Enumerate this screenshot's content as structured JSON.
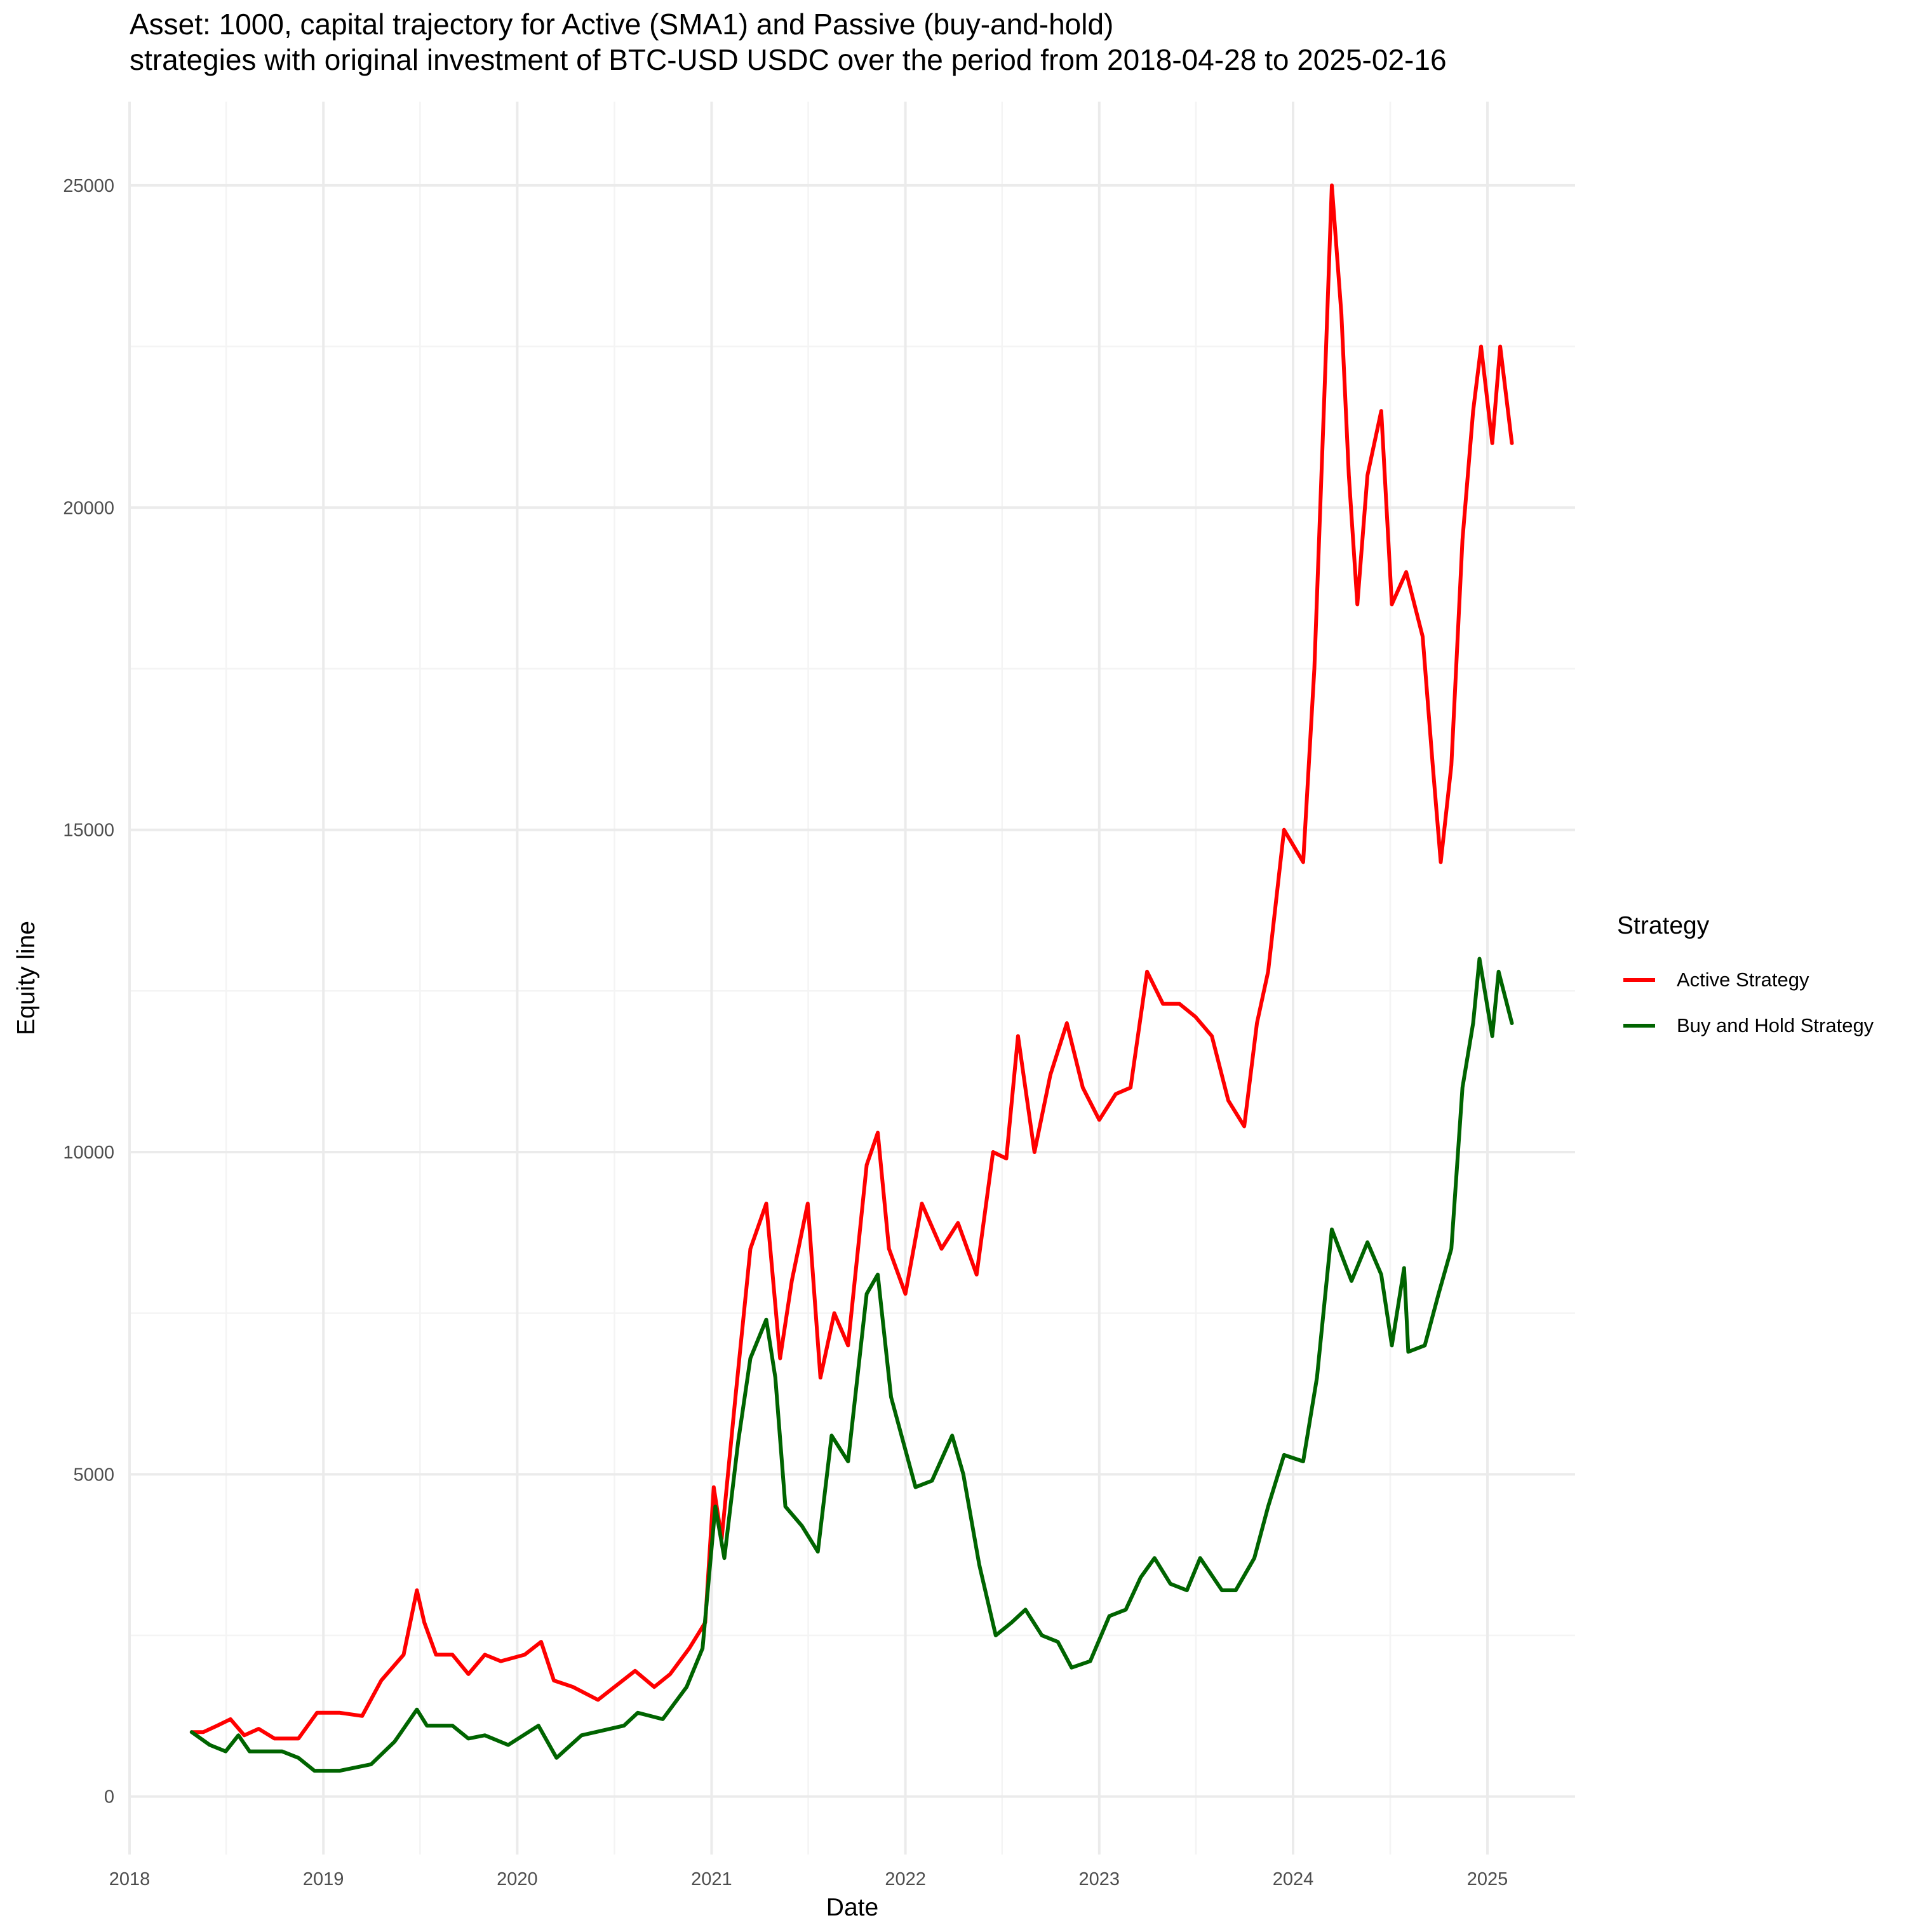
{
  "chart_data": {
    "type": "line",
    "title_line1": "Asset: 1000, capital trajectory for Active (SMA1) and Passive (buy-and-hold)",
    "title_line2": "strategies with original investment of BTC-USD USDC over the period from 2018-04-28 to 2025-02-16",
    "xlabel": "Date",
    "ylabel": "Equity line",
    "x_ticks": [
      "2018",
      "2019",
      "2020",
      "2021",
      "2022",
      "2023",
      "2024",
      "2025"
    ],
    "y_ticks": [
      "0",
      "5000",
      "10000",
      "15000",
      "20000",
      "25000"
    ],
    "xlim": [
      "2018-01-01",
      "2025-06-15"
    ],
    "ylim": [
      -900,
      26300
    ],
    "grid": true,
    "legend": {
      "title": "Strategy",
      "placement": "right",
      "entries": [
        "Active Strategy",
        "Buy and Hold Strategy"
      ]
    },
    "series": [
      {
        "name": "Active Strategy",
        "color": "#ff0000",
        "points": [
          [
            "2018-04-28",
            1000
          ],
          [
            "2018-05-20",
            1000
          ],
          [
            "2018-06-15",
            1100
          ],
          [
            "2018-07-10",
            1200
          ],
          [
            "2018-08-05",
            950
          ],
          [
            "2018-09-01",
            1050
          ],
          [
            "2018-10-01",
            900
          ],
          [
            "2018-11-15",
            900
          ],
          [
            "2018-12-20",
            1300
          ],
          [
            "2019-02-01",
            1300
          ],
          [
            "2019-03-15",
            1250
          ],
          [
            "2019-04-20",
            1800
          ],
          [
            "2019-06-01",
            2200
          ],
          [
            "2019-06-26",
            3200
          ],
          [
            "2019-07-10",
            2700
          ],
          [
            "2019-08-01",
            2200
          ],
          [
            "2019-09-01",
            2200
          ],
          [
            "2019-10-01",
            1900
          ],
          [
            "2019-11-01",
            2200
          ],
          [
            "2019-12-01",
            2100
          ],
          [
            "2020-01-15",
            2200
          ],
          [
            "2020-02-15",
            2400
          ],
          [
            "2020-03-10",
            1800
          ],
          [
            "2020-04-15",
            1700
          ],
          [
            "2020-06-01",
            1500
          ],
          [
            "2020-08-10",
            1950
          ],
          [
            "2020-09-15",
            1700
          ],
          [
            "2020-10-15",
            1900
          ],
          [
            "2020-11-20",
            2300
          ],
          [
            "2020-12-20",
            2700
          ],
          [
            "2021-01-05",
            4800
          ],
          [
            "2021-01-20",
            4000
          ],
          [
            "2021-02-15",
            6200
          ],
          [
            "2021-03-15",
            8500
          ],
          [
            "2021-04-14",
            9200
          ],
          [
            "2021-05-10",
            6800
          ],
          [
            "2021-06-01",
            8000
          ],
          [
            "2021-07-01",
            9200
          ],
          [
            "2021-07-25",
            6500
          ],
          [
            "2021-08-20",
            7500
          ],
          [
            "2021-09-15",
            7000
          ],
          [
            "2021-10-20",
            9800
          ],
          [
            "2021-11-10",
            10300
          ],
          [
            "2021-12-01",
            8500
          ],
          [
            "2022-01-01",
            7800
          ],
          [
            "2022-02-01",
            9200
          ],
          [
            "2022-03-10",
            8500
          ],
          [
            "2022-04-10",
            8900
          ],
          [
            "2022-05-15",
            8100
          ],
          [
            "2022-06-15",
            10000
          ],
          [
            "2022-07-10",
            9900
          ],
          [
            "2022-08-01",
            11800
          ],
          [
            "2022-09-01",
            10000
          ],
          [
            "2022-10-01",
            11200
          ],
          [
            "2022-11-01",
            12000
          ],
          [
            "2022-12-01",
            11000
          ],
          [
            "2023-01-01",
            10500
          ],
          [
            "2023-02-01",
            10900
          ],
          [
            "2023-03-01",
            11000
          ],
          [
            "2023-04-01",
            12800
          ],
          [
            "2023-05-01",
            12300
          ],
          [
            "2023-06-01",
            12300
          ],
          [
            "2023-07-01",
            12100
          ],
          [
            "2023-08-01",
            11800
          ],
          [
            "2023-09-01",
            10800
          ],
          [
            "2023-10-01",
            10400
          ],
          [
            "2023-10-25",
            12000
          ],
          [
            "2023-11-15",
            12800
          ],
          [
            "2023-12-15",
            15000
          ],
          [
            "2024-01-20",
            14500
          ],
          [
            "2024-02-10",
            17500
          ],
          [
            "2024-03-01",
            22000
          ],
          [
            "2024-03-14",
            25000
          ],
          [
            "2024-04-01",
            23000
          ],
          [
            "2024-04-15",
            20500
          ],
          [
            "2024-05-01",
            18500
          ],
          [
            "2024-05-20",
            20500
          ],
          [
            "2024-06-15",
            21500
          ],
          [
            "2024-07-05",
            18500
          ],
          [
            "2024-08-01",
            19000
          ],
          [
            "2024-09-01",
            18000
          ],
          [
            "2024-09-20",
            16000
          ],
          [
            "2024-10-05",
            14500
          ],
          [
            "2024-10-25",
            16000
          ],
          [
            "2024-11-15",
            19500
          ],
          [
            "2024-12-05",
            21500
          ],
          [
            "2024-12-20",
            22500
          ],
          [
            "2025-01-10",
            21000
          ],
          [
            "2025-01-25",
            22500
          ],
          [
            "2025-02-16",
            21000
          ]
        ]
      },
      {
        "name": "Buy and Hold Strategy",
        "color": "#006400",
        "points": [
          [
            "2018-04-28",
            1000
          ],
          [
            "2018-06-01",
            800
          ],
          [
            "2018-07-01",
            700
          ],
          [
            "2018-07-25",
            950
          ],
          [
            "2018-08-15",
            700
          ],
          [
            "2018-09-10",
            700
          ],
          [
            "2018-10-15",
            700
          ],
          [
            "2018-11-15",
            600
          ],
          [
            "2018-12-15",
            400
          ],
          [
            "2019-02-01",
            400
          ],
          [
            "2019-04-01",
            500
          ],
          [
            "2019-05-15",
            850
          ],
          [
            "2019-06-26",
            1350
          ],
          [
            "2019-07-15",
            1100
          ],
          [
            "2019-09-01",
            1100
          ],
          [
            "2019-10-01",
            900
          ],
          [
            "2019-11-01",
            950
          ],
          [
            "2019-12-15",
            800
          ],
          [
            "2020-02-10",
            1100
          ],
          [
            "2020-03-15",
            600
          ],
          [
            "2020-05-01",
            950
          ],
          [
            "2020-07-20",
            1100
          ],
          [
            "2020-08-15",
            1300
          ],
          [
            "2020-10-01",
            1200
          ],
          [
            "2020-11-15",
            1700
          ],
          [
            "2020-12-15",
            2300
          ],
          [
            "2021-01-08",
            4500
          ],
          [
            "2021-01-25",
            3700
          ],
          [
            "2021-02-20",
            5500
          ],
          [
            "2021-03-15",
            6800
          ],
          [
            "2021-04-14",
            7400
          ],
          [
            "2021-05-01",
            6500
          ],
          [
            "2021-05-20",
            4500
          ],
          [
            "2021-06-20",
            4200
          ],
          [
            "2021-07-20",
            3800
          ],
          [
            "2021-08-15",
            5600
          ],
          [
            "2021-09-15",
            5200
          ],
          [
            "2021-10-20",
            7800
          ],
          [
            "2021-11-10",
            8100
          ],
          [
            "2021-12-05",
            6200
          ],
          [
            "2022-01-20",
            4800
          ],
          [
            "2022-02-20",
            4900
          ],
          [
            "2022-03-30",
            5600
          ],
          [
            "2022-04-20",
            5000
          ],
          [
            "2022-05-20",
            3600
          ],
          [
            "2022-06-20",
            2500
          ],
          [
            "2022-07-20",
            2700
          ],
          [
            "2022-08-15",
            2900
          ],
          [
            "2022-09-15",
            2500
          ],
          [
            "2022-10-15",
            2400
          ],
          [
            "2022-11-10",
            2000
          ],
          [
            "2022-12-15",
            2100
          ],
          [
            "2023-01-20",
            2800
          ],
          [
            "2023-02-20",
            2900
          ],
          [
            "2023-03-20",
            3400
          ],
          [
            "2023-04-15",
            3700
          ],
          [
            "2023-05-15",
            3300
          ],
          [
            "2023-06-15",
            3200
          ],
          [
            "2023-07-10",
            3700
          ],
          [
            "2023-08-20",
            3200
          ],
          [
            "2023-09-15",
            3200
          ],
          [
            "2023-10-20",
            3700
          ],
          [
            "2023-11-15",
            4500
          ],
          [
            "2023-12-15",
            5300
          ],
          [
            "2024-01-20",
            5200
          ],
          [
            "2024-02-15",
            6500
          ],
          [
            "2024-03-14",
            8800
          ],
          [
            "2024-04-20",
            8000
          ],
          [
            "2024-05-20",
            8600
          ],
          [
            "2024-06-15",
            8100
          ],
          [
            "2024-07-05",
            7000
          ],
          [
            "2024-07-28",
            8200
          ],
          [
            "2024-08-05",
            6900
          ],
          [
            "2024-09-05",
            7000
          ],
          [
            "2024-10-01",
            7800
          ],
          [
            "2024-10-25",
            8500
          ],
          [
            "2024-11-15",
            11000
          ],
          [
            "2024-12-05",
            12000
          ],
          [
            "2024-12-17",
            13000
          ],
          [
            "2025-01-10",
            11800
          ],
          [
            "2025-01-22",
            12800
          ],
          [
            "2025-02-16",
            12000
          ]
        ]
      }
    ]
  }
}
